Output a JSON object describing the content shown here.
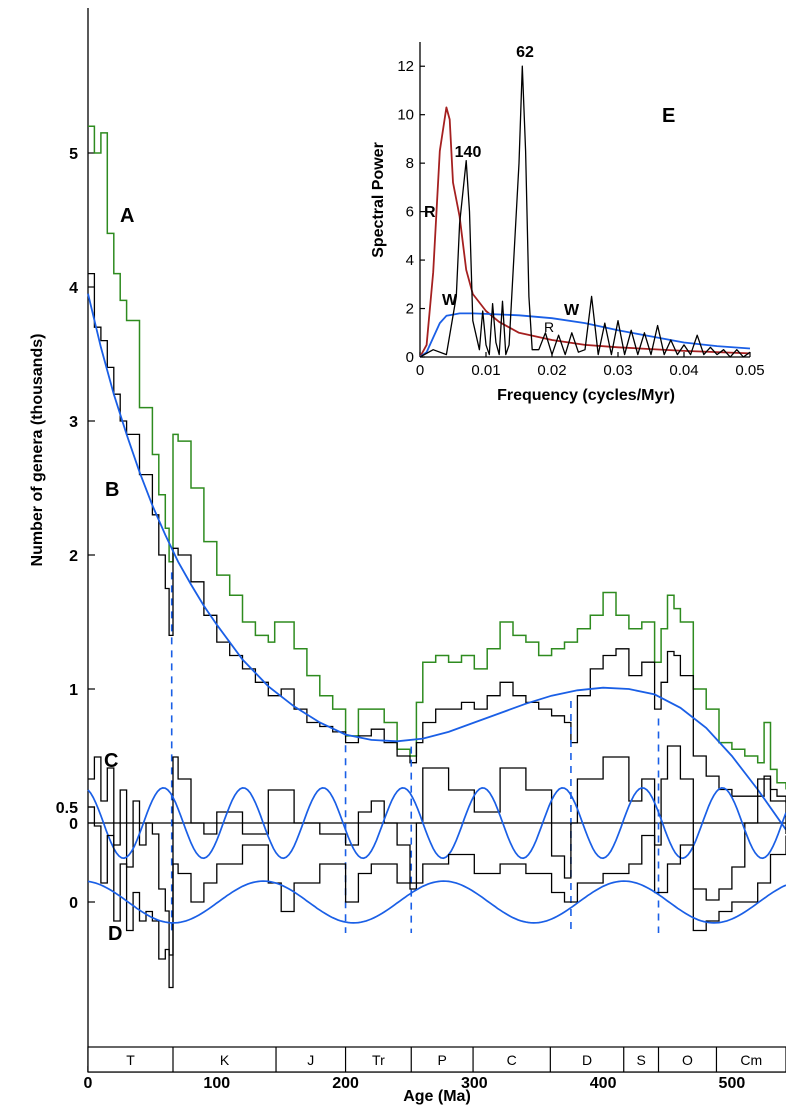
{
  "colors": {
    "green": "#2e8b1f",
    "black": "#000000",
    "blue": "#1a5fe6",
    "red": "#a52020"
  },
  "main": {
    "xlabel": "Age (Ma)",
    "ylabel": "Number of genera (thousands)",
    "x_ticks": [
      "0",
      "100",
      "200",
      "300",
      "400",
      "500"
    ],
    "y_ticks_main": [
      "1",
      "2",
      "3",
      "4",
      "5"
    ],
    "y_tick_zero": "0",
    "y_ticks_d": [
      "0.5",
      "0"
    ],
    "curve_labels": {
      "A": "A",
      "B": "B",
      "C": "C",
      "D": "D"
    },
    "periods": [
      "T",
      "K",
      "J",
      "Tr",
      "P",
      "C",
      "D",
      "S",
      "O",
      "Cm"
    ]
  },
  "inset": {
    "panel_label": "E",
    "xlabel": "Frequency (cycles/Myr)",
    "ylabel": "Spectral Power",
    "x_ticks": [
      "0",
      "0.01",
      "0.02",
      "0.03",
      "0.04",
      "0.05"
    ],
    "y_ticks": [
      "0",
      "2",
      "4",
      "6",
      "8",
      "10",
      "12"
    ],
    "peak_labels": {
      "p62": "62",
      "p140": "140"
    },
    "series_labels": {
      "R1": "R",
      "R2": "R",
      "W1": "W",
      "W2": "W"
    }
  },
  "chart_data": [
    {
      "type": "line",
      "title": "",
      "xlabel": "Age (Ma)",
      "ylabel": "Number of genera (thousands)",
      "xlim": [
        0,
        542
      ],
      "ylim": [
        0,
        6
      ],
      "x_ticks": [
        0,
        100,
        200,
        300,
        400,
        500
      ],
      "y_ticks": [
        1,
        2,
        3,
        4,
        5
      ],
      "series": [
        {
          "name": "A",
          "color": "#2e8b1f",
          "x": [
            0,
            5,
            10,
            15,
            20,
            25,
            30,
            40,
            50,
            55,
            60,
            63,
            66,
            70,
            80,
            90,
            100,
            110,
            120,
            130,
            140,
            145,
            150,
            160,
            170,
            180,
            190,
            200,
            210,
            220,
            230,
            240,
            250,
            255,
            260,
            270,
            280,
            290,
            300,
            310,
            320,
            330,
            340,
            350,
            360,
            370,
            380,
            390,
            400,
            410,
            420,
            430,
            440,
            445,
            450,
            455,
            460,
            470,
            480,
            490,
            500,
            510,
            520,
            525,
            530,
            535,
            542
          ],
          "y": [
            5.2,
            5.0,
            5.15,
            4.4,
            4.1,
            3.9,
            3.75,
            3.1,
            2.75,
            2.45,
            2.2,
            1.95,
            2.9,
            2.85,
            2.5,
            2.1,
            1.85,
            1.7,
            1.5,
            1.4,
            1.35,
            1.5,
            1.5,
            1.3,
            1.1,
            0.95,
            0.85,
            0.65,
            0.85,
            0.85,
            0.75,
            0.55,
            0.5,
            0.9,
            1.2,
            1.25,
            1.2,
            1.25,
            1.15,
            1.3,
            1.5,
            1.4,
            1.35,
            1.25,
            1.3,
            1.35,
            1.45,
            1.55,
            1.72,
            1.55,
            1.45,
            1.5,
            1.2,
            1.45,
            1.7,
            1.6,
            1.5,
            1.0,
            0.85,
            0.6,
            0.55,
            0.5,
            0.45,
            0.75,
            0.4,
            0.3,
            0.25
          ]
        },
        {
          "name": "B",
          "color": "#000000",
          "x": [
            0,
            5,
            10,
            15,
            20,
            25,
            30,
            40,
            50,
            55,
            60,
            63,
            66,
            70,
            80,
            90,
            100,
            110,
            120,
            130,
            140,
            150,
            160,
            170,
            180,
            190,
            200,
            210,
            220,
            230,
            240,
            250,
            255,
            260,
            270,
            280,
            290,
            300,
            310,
            320,
            330,
            340,
            350,
            360,
            370,
            375,
            380,
            390,
            400,
            410,
            420,
            430,
            440,
            445,
            450,
            455,
            460,
            470,
            480,
            490,
            500,
            510,
            520,
            525,
            530,
            535,
            542
          ],
          "y": [
            4.1,
            3.7,
            3.6,
            3.4,
            3.2,
            3.0,
            2.9,
            2.6,
            2.3,
            2.0,
            1.75,
            1.4,
            2.05,
            2.0,
            1.8,
            1.55,
            1.35,
            1.25,
            1.15,
            1.05,
            0.95,
            1.0,
            0.85,
            0.75,
            0.72,
            0.68,
            0.6,
            0.65,
            0.7,
            0.6,
            0.5,
            0.45,
            0.6,
            0.75,
            0.85,
            0.85,
            0.9,
            0.85,
            0.95,
            1.05,
            0.95,
            0.9,
            0.85,
            0.8,
            0.75,
            0.6,
            0.95,
            1.15,
            1.25,
            1.3,
            1.1,
            1.2,
            0.85,
            1.05,
            1.28,
            1.25,
            1.1,
            0.5,
            0.35,
            0.25,
            0.2,
            0.2,
            0.2,
            0.35,
            0.25,
            0.2,
            0.15
          ]
        },
        {
          "name": "B fit",
          "color": "#1a5fe6",
          "x": [
            0,
            10,
            20,
            30,
            40,
            50,
            60,
            70,
            80,
            90,
            100,
            120,
            140,
            160,
            180,
            200,
            220,
            240,
            260,
            280,
            300,
            320,
            340,
            360,
            380,
            400,
            420,
            440,
            460,
            480,
            500,
            520,
            542
          ],
          "y": [
            3.95,
            3.55,
            3.2,
            2.9,
            2.62,
            2.37,
            2.15,
            1.95,
            1.78,
            1.62,
            1.48,
            1.22,
            1.02,
            0.87,
            0.75,
            0.66,
            0.62,
            0.61,
            0.63,
            0.68,
            0.75,
            0.82,
            0.89,
            0.95,
            0.99,
            1.01,
            1.0,
            0.96,
            0.86,
            0.71,
            0.5,
            0.25,
            -0.05
          ]
        }
      ]
    },
    {
      "type": "line",
      "title": "",
      "xlim": [
        0,
        542
      ],
      "ylim": [
        -0.7,
        0.45
      ],
      "y_ticks": [
        0
      ],
      "series": [
        {
          "name": "C",
          "color": "#000000",
          "x": [
            0,
            5,
            10,
            15,
            20,
            25,
            30,
            35,
            40,
            45,
            50,
            55,
            60,
            63,
            66,
            70,
            80,
            90,
            100,
            120,
            140,
            160,
            180,
            200,
            210,
            220,
            230,
            240,
            250,
            255,
            260,
            270,
            280,
            300,
            320,
            340,
            360,
            370,
            375,
            380,
            400,
            420,
            430,
            440,
            445,
            450,
            460,
            470,
            480,
            490,
            500,
            510,
            520,
            530,
            542
          ],
          "y": [
            0.2,
            0.3,
            0.1,
            0.25,
            -0.1,
            0.15,
            -0.2,
            0.1,
            -0.1,
            0.0,
            -0.05,
            -0.3,
            -0.4,
            -0.6,
            0.3,
            0.2,
            0.0,
            -0.05,
            0.05,
            -0.05,
            0.15,
            0.0,
            -0.05,
            -0.1,
            0.05,
            0.1,
            0.0,
            -0.1,
            -0.3,
            0.0,
            0.25,
            0.25,
            0.15,
            0.05,
            0.25,
            0.15,
            -0.15,
            -0.25,
            0.0,
            0.2,
            0.3,
            0.1,
            0.2,
            -0.1,
            0.2,
            0.35,
            0.2,
            -0.3,
            -0.35,
            -0.3,
            -0.2,
            0.0,
            0.2,
            0.1,
            -0.05
          ]
        },
        {
          "name": "C fit",
          "color": "#1a5fe6",
          "period_myr": 62,
          "amplitude": 0.16,
          "phase_deg": 20
        }
      ],
      "markers": [
        65,
        200,
        251,
        375,
        443
      ]
    },
    {
      "type": "line",
      "title": "",
      "xlim": [
        0,
        542
      ],
      "ylim": [
        -0.45,
        0.62
      ],
      "y_ticks": [
        0,
        0.5
      ],
      "series": [
        {
          "name": "D",
          "color": "#000000",
          "x": [
            0,
            5,
            10,
            15,
            20,
            25,
            30,
            35,
            40,
            45,
            50,
            55,
            60,
            63,
            66,
            70,
            80,
            90,
            100,
            120,
            140,
            150,
            160,
            180,
            200,
            210,
            220,
            240,
            260,
            280,
            300,
            320,
            340,
            360,
            370,
            380,
            400,
            420,
            430,
            440,
            450,
            460,
            470,
            480,
            490,
            500,
            510,
            520,
            530,
            542
          ],
          "y": [
            0.5,
            0.4,
            0.1,
            0.35,
            -0.1,
            0.2,
            -0.15,
            0.05,
            -0.1,
            -0.05,
            -0.1,
            -0.3,
            -0.25,
            -0.45,
            0.2,
            0.15,
            0.0,
            0.1,
            0.2,
            0.3,
            0.1,
            -0.05,
            0.1,
            0.2,
            0.0,
            0.15,
            0.2,
            0.1,
            0.2,
            0.25,
            0.15,
            0.2,
            0.15,
            0.05,
            0.0,
            0.1,
            0.15,
            0.2,
            0.35,
            0.05,
            0.2,
            0.3,
            -0.15,
            -0.1,
            -0.05,
            0.0,
            0.0,
            0.1,
            0.25,
            0.35
          ]
        },
        {
          "name": "D fit",
          "color": "#1a5fe6",
          "period_myr": 140,
          "amplitude": 0.11,
          "phase_deg": 10
        }
      ]
    },
    {
      "type": "line",
      "title": "",
      "xlabel": "Frequency (cycles/Myr)",
      "ylabel": "Spectral Power",
      "xlim": [
        0,
        0.05
      ],
      "ylim": [
        0,
        13
      ],
      "x_ticks": [
        0,
        0.01,
        0.02,
        0.03,
        0.04,
        0.05
      ],
      "y_ticks": [
        0,
        2,
        4,
        6,
        8,
        10,
        12
      ],
      "series": [
        {
          "name": "R",
          "color": "#a52020",
          "x": [
            0,
            0.001,
            0.002,
            0.003,
            0.004,
            0.0045,
            0.005,
            0.006,
            0.007,
            0.008,
            0.01,
            0.012,
            0.015,
            0.02,
            0.025,
            0.03,
            0.04,
            0.05
          ],
          "y": [
            0,
            0.5,
            3.5,
            8.5,
            10.3,
            9.8,
            7.2,
            5.8,
            3.6,
            2.6,
            1.9,
            1.45,
            1.0,
            0.7,
            0.5,
            0.4,
            0.25,
            0.15
          ]
        },
        {
          "name": "W",
          "color": "#1a5fe6",
          "x": [
            0,
            0.001,
            0.002,
            0.003,
            0.004,
            0.005,
            0.006,
            0.008,
            0.01,
            0.015,
            0.02,
            0.025,
            0.03,
            0.035,
            0.04,
            0.045,
            0.05
          ],
          "y": [
            0,
            0.2,
            0.8,
            1.4,
            1.7,
            1.75,
            1.8,
            1.8,
            1.78,
            1.72,
            1.6,
            1.4,
            1.1,
            0.85,
            0.6,
            0.45,
            0.35
          ]
        },
        {
          "name": "spectrum",
          "color": "#000000",
          "x": [
            0,
            0.002,
            0.004,
            0.0055,
            0.006,
            0.007,
            0.0075,
            0.008,
            0.009,
            0.0095,
            0.01,
            0.0105,
            0.011,
            0.0115,
            0.012,
            0.0125,
            0.013,
            0.0135,
            0.014,
            0.015,
            0.0155,
            0.016,
            0.0165,
            0.017,
            0.018,
            0.019,
            0.02,
            0.021,
            0.022,
            0.023,
            0.024,
            0.025,
            0.026,
            0.027,
            0.028,
            0.029,
            0.03,
            0.031,
            0.032,
            0.033,
            0.034,
            0.035,
            0.036,
            0.037,
            0.038,
            0.039,
            0.04,
            0.041,
            0.042,
            0.043,
            0.044,
            0.045,
            0.046,
            0.047,
            0.048,
            0.049,
            0.05
          ],
          "y": [
            0,
            0.3,
            0.1,
            2.5,
            5.5,
            8.1,
            6.0,
            1.5,
            0.3,
            1.9,
            0.5,
            0.1,
            2.2,
            0.6,
            0.1,
            2.3,
            0.1,
            0.5,
            3.0,
            8.0,
            12.0,
            8.5,
            2.5,
            0.3,
            0.3,
            1.0,
            0.1,
            0.9,
            0.1,
            1.0,
            0.2,
            0.3,
            2.5,
            0.1,
            1.4,
            0.1,
            1.5,
            0.1,
            1.1,
            0.1,
            1.0,
            0.1,
            1.3,
            0.1,
            0.7,
            0.1,
            0.5,
            0.1,
            0.9,
            0.1,
            0.4,
            0.1,
            0.3,
            0.0,
            0.3,
            0.0,
            0.2
          ]
        }
      ]
    }
  ]
}
